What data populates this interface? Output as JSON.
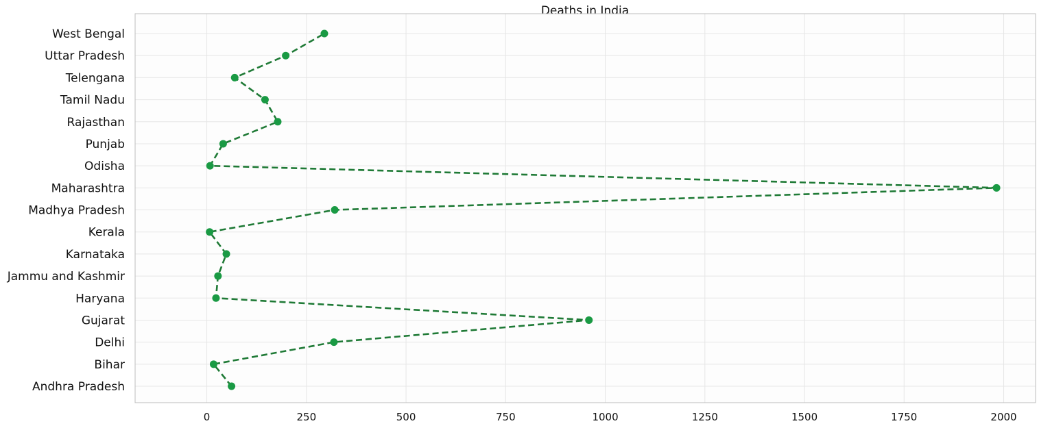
{
  "chart_data": {
    "type": "line",
    "title": "Deaths in India",
    "xlabel": "",
    "ylabel": "",
    "xlim": [
      -180,
      2080
    ],
    "xticks": [
      0,
      250,
      500,
      750,
      1000,
      1250,
      1500,
      1750,
      2000
    ],
    "grid": true,
    "color": "#1a9a44",
    "categories": [
      "Andhra Pradesh",
      "Bihar",
      "Delhi",
      "Gujarat",
      "Haryana",
      "Jammu and Kashmir",
      "Karnataka",
      "Kerala",
      "Madhya Pradesh",
      "Maharashtra",
      "Odisha",
      "Punjab",
      "Rajasthan",
      "Tamil Nadu",
      "Telengana",
      "Uttar Pradesh",
      "West Bengal"
    ],
    "values": [
      62,
      17,
      319,
      959,
      23,
      28,
      49,
      7,
      321,
      1982,
      8,
      41,
      178,
      146,
      70,
      198,
      295
    ]
  }
}
